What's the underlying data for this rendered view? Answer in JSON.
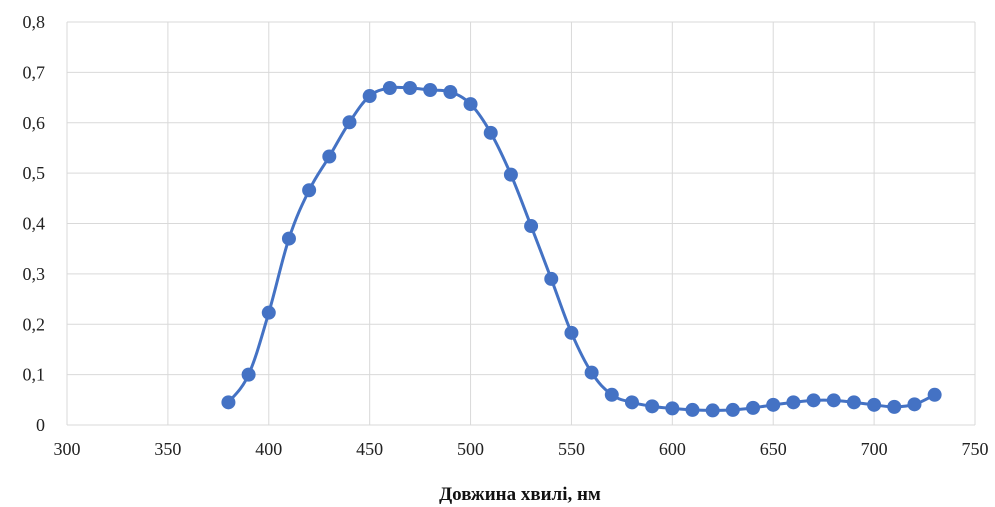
{
  "chart_data": {
    "type": "line",
    "title": "",
    "xlabel": "Довжина хвилі, нм",
    "ylabel": "",
    "xlim": [
      300,
      750
    ],
    "ylim": [
      0,
      0.8
    ],
    "grid": true,
    "legend": "none",
    "x_ticks": [
      300,
      350,
      400,
      450,
      500,
      550,
      600,
      650,
      700,
      750
    ],
    "x_tick_labels": [
      "300",
      "350",
      "400",
      "450",
      "500",
      "550",
      "600",
      "650",
      "700",
      "750"
    ],
    "y_ticks": [
      0,
      0.1,
      0.2,
      0.3,
      0.4,
      0.5,
      0.6,
      0.7,
      0.8
    ],
    "y_tick_labels": [
      "0",
      "0,1",
      "0,2",
      "0,3",
      "0,4",
      "0,5",
      "0,6",
      "0,7",
      "0,8"
    ],
    "colors": {
      "series": "#4472c4",
      "grid": "#d9d9d9"
    },
    "series": [
      {
        "x": [
          380,
          390,
          400,
          410,
          420,
          430,
          440,
          450,
          460,
          470,
          480,
          490,
          500,
          510,
          520,
          530,
          540,
          550,
          560,
          570,
          580,
          590,
          600,
          610,
          620,
          630,
          640,
          650,
          660,
          670,
          680,
          690,
          700,
          710,
          720,
          730
        ],
        "y": [
          0.045,
          0.1,
          0.223,
          0.37,
          0.466,
          0.533,
          0.601,
          0.653,
          0.669,
          0.669,
          0.665,
          0.661,
          0.637,
          0.58,
          0.497,
          0.395,
          0.29,
          0.183,
          0.104,
          0.06,
          0.045,
          0.037,
          0.033,
          0.03,
          0.029,
          0.03,
          0.034,
          0.04,
          0.045,
          0.049,
          0.049,
          0.045,
          0.04,
          0.036,
          0.041,
          0.06
        ]
      }
    ]
  }
}
